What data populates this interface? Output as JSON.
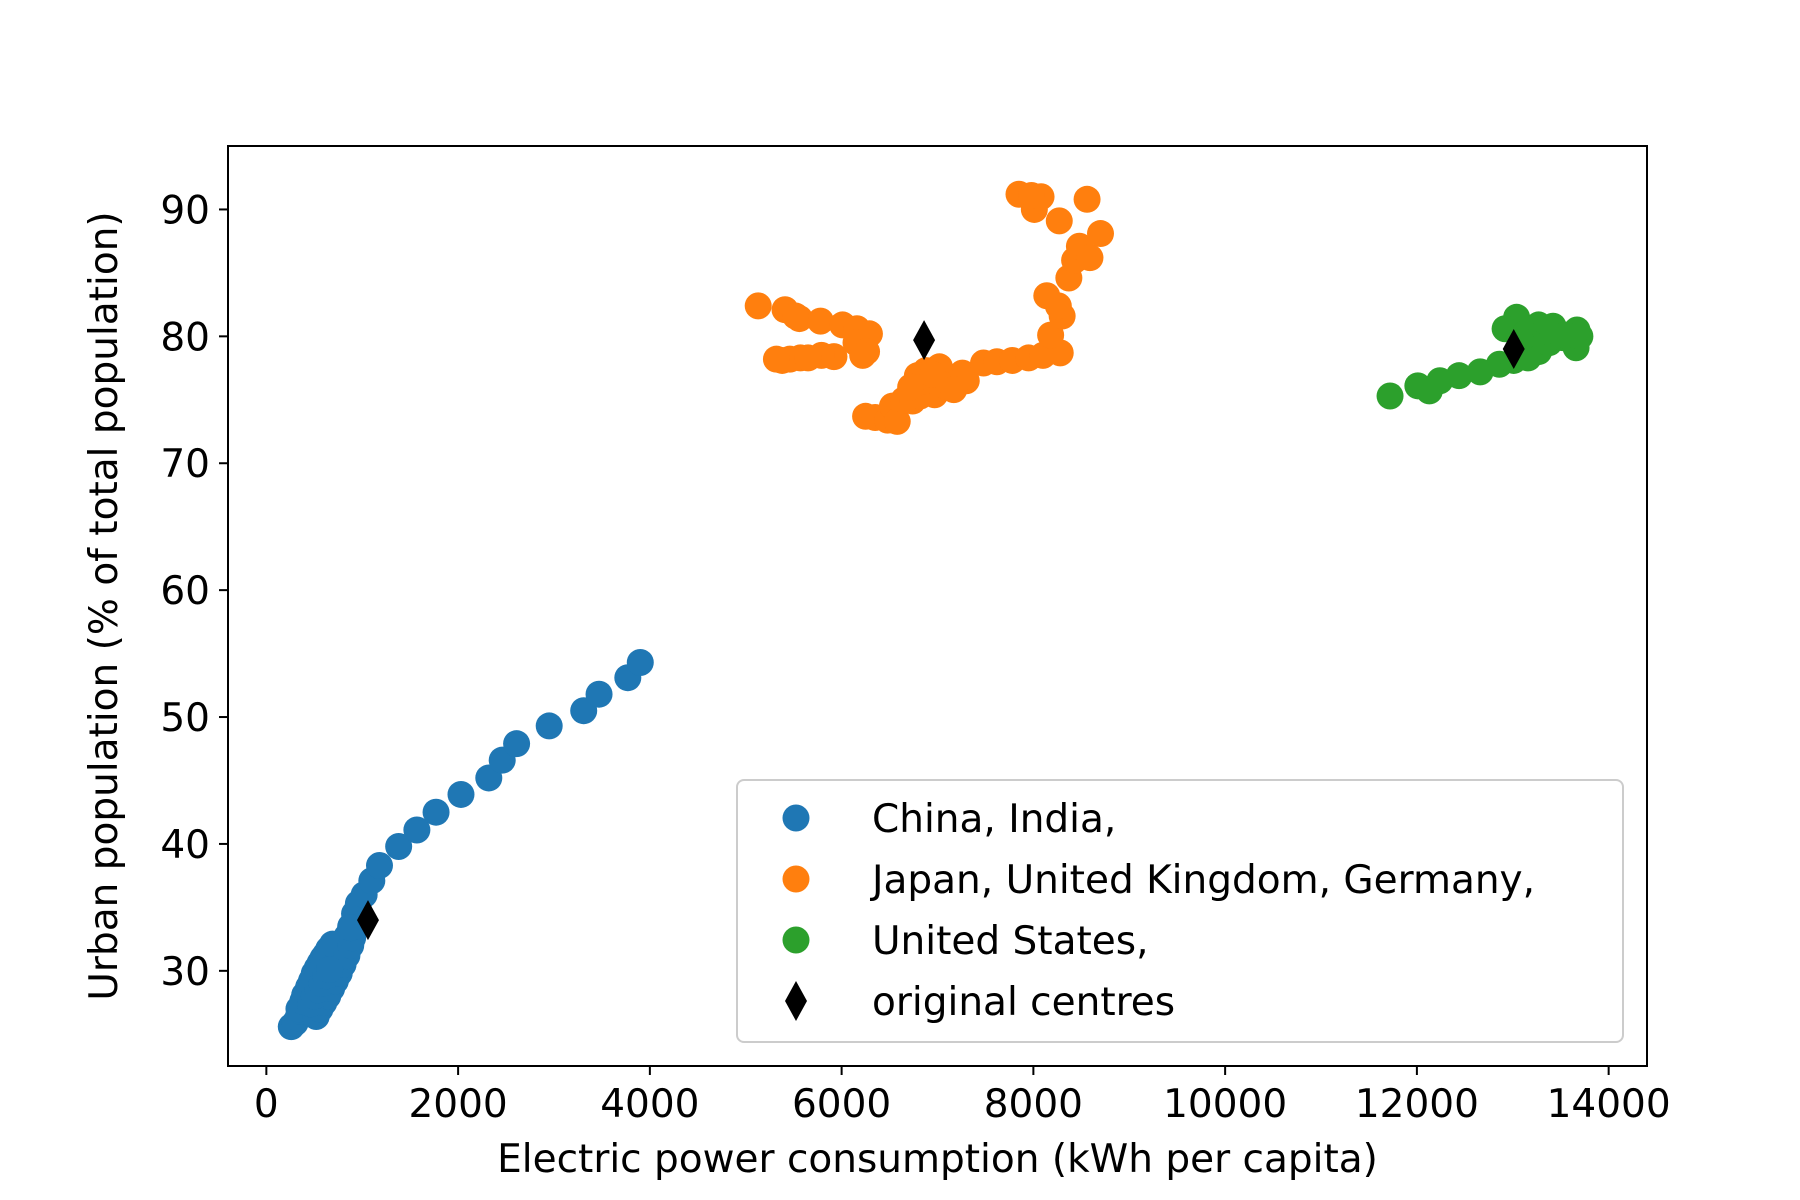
{
  "chart_data": {
    "type": "scatter",
    "title": "",
    "xlabel": "Electric power consumption (kWh per capita)",
    "ylabel": "Urban population (% of total population)",
    "xlim": [
      -400,
      14400
    ],
    "ylim": [
      22.5,
      95
    ],
    "x_ticks": [
      0,
      2000,
      4000,
      6000,
      8000,
      10000,
      12000,
      14000
    ],
    "y_ticks": [
      30,
      40,
      50,
      60,
      70,
      80,
      90
    ],
    "grid": false,
    "legend_position": "lower-right",
    "series": [
      {
        "name": "China, India,",
        "color": "#1f77b4",
        "marker": "circle",
        "points": [
          [
            260,
            25.6
          ],
          [
            300,
            25.9
          ],
          [
            330,
            26.3
          ],
          [
            360,
            26.8
          ],
          [
            390,
            27.3
          ],
          [
            420,
            27.8
          ],
          [
            450,
            28.3
          ],
          [
            480,
            28.7
          ],
          [
            510,
            29.1
          ],
          [
            540,
            29.5
          ],
          [
            570,
            29.9
          ],
          [
            600,
            30.3
          ],
          [
            640,
            30.7
          ],
          [
            680,
            31.1
          ],
          [
            720,
            31.5
          ],
          [
            760,
            31.9
          ],
          [
            800,
            32.3
          ],
          [
            840,
            32.7
          ],
          [
            880,
            33.5
          ],
          [
            920,
            34.5
          ],
          [
            960,
            35.3
          ],
          [
            1020,
            36.0
          ],
          [
            1100,
            37.1
          ],
          [
            1180,
            38.3
          ],
          [
            1380,
            39.8
          ],
          [
            1570,
            41.1
          ],
          [
            1770,
            42.5
          ],
          [
            2030,
            43.9
          ],
          [
            2320,
            45.2
          ],
          [
            2460,
            46.6
          ],
          [
            2610,
            47.9
          ],
          [
            2950,
            49.3
          ],
          [
            3310,
            50.5
          ],
          [
            3470,
            51.8
          ],
          [
            3770,
            53.1
          ],
          [
            3900,
            54.3
          ],
          [
            340,
            27.0
          ],
          [
            380,
            27.6
          ],
          [
            400,
            28.1
          ],
          [
            440,
            28.7
          ],
          [
            470,
            29.2
          ],
          [
            500,
            29.8
          ],
          [
            530,
            30.2
          ],
          [
            560,
            30.6
          ],
          [
            590,
            31.0
          ],
          [
            620,
            31.3
          ],
          [
            650,
            31.7
          ],
          [
            690,
            32.1
          ],
          [
            520,
            26.4
          ],
          [
            560,
            27.0
          ],
          [
            600,
            27.5
          ],
          [
            640,
            28.0
          ],
          [
            680,
            28.6
          ],
          [
            720,
            29.2
          ],
          [
            760,
            29.8
          ],
          [
            800,
            30.5
          ],
          [
            840,
            31.2
          ],
          [
            880,
            32.0
          ],
          [
            900,
            32.6
          ],
          [
            880,
            33.4
          ],
          [
            460,
            27.4
          ],
          [
            500,
            28.0
          ],
          [
            540,
            28.5
          ],
          [
            580,
            29.0
          ],
          [
            620,
            29.6
          ],
          [
            660,
            30.1
          ]
        ]
      },
      {
        "name": "Japan, United Kingdom, Germany,",
        "color": "#ff7f0e",
        "marker": "circle",
        "points": [
          [
            5130,
            82.4
          ],
          [
            5410,
            82.1
          ],
          [
            5560,
            81.4
          ],
          [
            5780,
            81.2
          ],
          [
            5520,
            81.6
          ],
          [
            6010,
            80.9
          ],
          [
            6160,
            80.6
          ],
          [
            6290,
            80.2
          ],
          [
            6150,
            79.5
          ],
          [
            6260,
            78.8
          ],
          [
            6220,
            78.5
          ],
          [
            5920,
            78.4
          ],
          [
            5790,
            78.5
          ],
          [
            5570,
            78.3
          ],
          [
            5460,
            78.2
          ],
          [
            5380,
            78.1
          ],
          [
            5320,
            78.2
          ],
          [
            5650,
            78.3
          ],
          [
            6250,
            73.7
          ],
          [
            6350,
            73.6
          ],
          [
            6480,
            73.4
          ],
          [
            6530,
            74.5
          ],
          [
            6580,
            73.3
          ],
          [
            6650,
            75.0
          ],
          [
            6740,
            74.9
          ],
          [
            6820,
            75.3
          ],
          [
            6900,
            75.6
          ],
          [
            6970,
            75.4
          ],
          [
            7050,
            75.9
          ],
          [
            7120,
            76.3
          ],
          [
            7200,
            76.8
          ],
          [
            7260,
            77.1
          ],
          [
            7300,
            76.5
          ],
          [
            7020,
            77.6
          ],
          [
            6880,
            77.3
          ],
          [
            6790,
            76.9
          ],
          [
            6860,
            76.5
          ],
          [
            7080,
            76.1
          ],
          [
            7170,
            75.8
          ],
          [
            6720,
            76.0
          ],
          [
            6950,
            77.0
          ],
          [
            7480,
            77.9
          ],
          [
            7620,
            78.0
          ],
          [
            7780,
            78.1
          ],
          [
            7950,
            78.3
          ],
          [
            8100,
            78.5
          ],
          [
            8280,
            78.7
          ],
          [
            8180,
            80.1
          ],
          [
            8300,
            81.6
          ],
          [
            8140,
            83.2
          ],
          [
            8260,
            82.4
          ],
          [
            8370,
            84.6
          ],
          [
            8430,
            86.0
          ],
          [
            8480,
            87.1
          ],
          [
            8590,
            86.2
          ],
          [
            8700,
            88.1
          ],
          [
            8270,
            89.1
          ],
          [
            8010,
            90.0
          ],
          [
            7850,
            91.2
          ],
          [
            8080,
            91.0
          ],
          [
            7980,
            91.1
          ],
          [
            8560,
            90.8
          ]
        ]
      },
      {
        "name": "United States,",
        "color": "#2ca02c",
        "marker": "circle",
        "points": [
          [
            11720,
            75.3
          ],
          [
            12010,
            76.1
          ],
          [
            12130,
            75.7
          ],
          [
            12240,
            76.5
          ],
          [
            12440,
            76.9
          ],
          [
            12660,
            77.2
          ],
          [
            12860,
            77.8
          ],
          [
            13010,
            78.1
          ],
          [
            13110,
            78.5
          ],
          [
            13270,
            78.8
          ],
          [
            13160,
            78.3
          ],
          [
            13380,
            79.5
          ],
          [
            13520,
            79.9
          ],
          [
            13660,
            79.1
          ],
          [
            13700,
            80.0
          ],
          [
            13670,
            80.5
          ],
          [
            13420,
            80.8
          ],
          [
            13270,
            80.9
          ],
          [
            13040,
            81.5
          ],
          [
            12920,
            80.6
          ],
          [
            13130,
            80.2
          ],
          [
            13330,
            80.4
          ],
          [
            13550,
            80.1
          ],
          [
            13190,
            79.4
          ],
          [
            13080,
            79.7
          ]
        ]
      },
      {
        "name": "original centres",
        "color": "#000000",
        "marker": "diamond",
        "points": [
          [
            1060,
            34.0
          ],
          [
            6860,
            79.7
          ],
          [
            13010,
            79.0
          ]
        ]
      }
    ]
  }
}
